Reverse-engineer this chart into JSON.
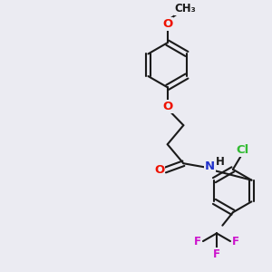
{
  "bg_color": "#ebebf2",
  "bond_color": "#1a1a1a",
  "bond_width": 1.5,
  "dbo": 0.012,
  "atom_colors": {
    "O": "#ee1100",
    "N": "#2233cc",
    "Cl": "#33bb33",
    "F": "#cc11cc",
    "C": "#1a1a1a"
  },
  "fs": 9.5,
  "fs_small": 8.5
}
